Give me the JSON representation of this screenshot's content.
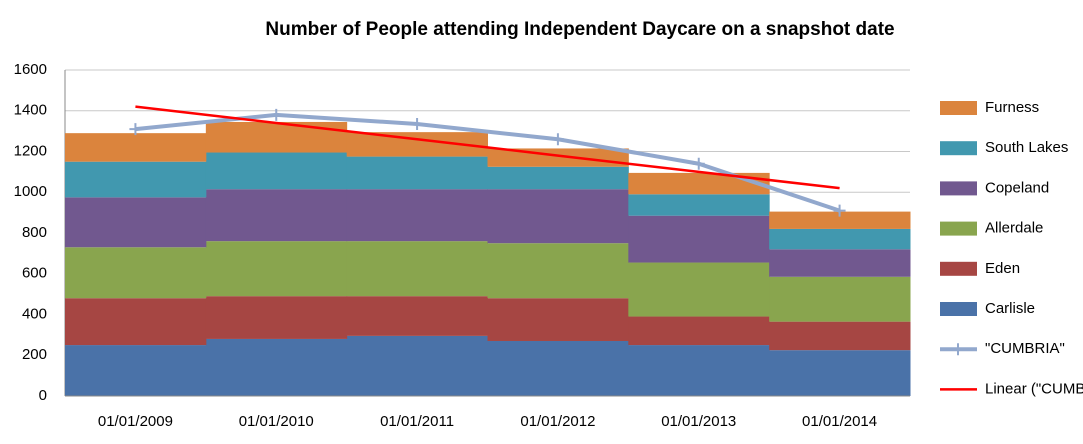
{
  "chart_data": {
    "type": "bar",
    "stacked": true,
    "title": "Number of People attending Independent Daycare on a snapshot date",
    "categories": [
      "01/01/2009",
      "01/01/2010",
      "01/01/2011",
      "01/01/2012",
      "01/01/2013",
      "01/01/2014"
    ],
    "series": [
      {
        "name": "Carlisle",
        "color": "#4a72a8",
        "type": "bar",
        "values": [
          250,
          280,
          295,
          270,
          250,
          225
        ]
      },
      {
        "name": "Eden",
        "color": "#a64643",
        "type": "bar",
        "values": [
          230,
          210,
          195,
          210,
          140,
          140
        ]
      },
      {
        "name": "Allerdale",
        "color": "#89a54e",
        "type": "bar",
        "values": [
          250,
          270,
          270,
          270,
          265,
          220
        ]
      },
      {
        "name": "Copeland",
        "color": "#71588f",
        "type": "bar",
        "values": [
          245,
          255,
          255,
          265,
          230,
          135
        ]
      },
      {
        "name": "South Lakes",
        "color": "#4198af",
        "type": "bar",
        "values": [
          175,
          180,
          160,
          110,
          105,
          100
        ]
      },
      {
        "name": "Furness",
        "color": "#db843d",
        "type": "bar",
        "values": [
          140,
          150,
          120,
          90,
          105,
          85
        ]
      },
      {
        "name": "\"CUMBRIA\"",
        "color": "#92a8cd",
        "type": "line",
        "marker": "+",
        "values": [
          1310,
          1380,
          1335,
          1260,
          1140,
          910
        ]
      },
      {
        "name": "Linear (\"CUMBRIA\")",
        "color": "#ff0000",
        "type": "line",
        "values": [
          1420,
          1340,
          1260,
          1180,
          1100,
          1020
        ]
      }
    ],
    "ylim": [
      0,
      1600
    ],
    "yticks": [
      0,
      200,
      400,
      600,
      800,
      1000,
      1200,
      1400,
      1600
    ],
    "grid": true,
    "legend": "right"
  }
}
